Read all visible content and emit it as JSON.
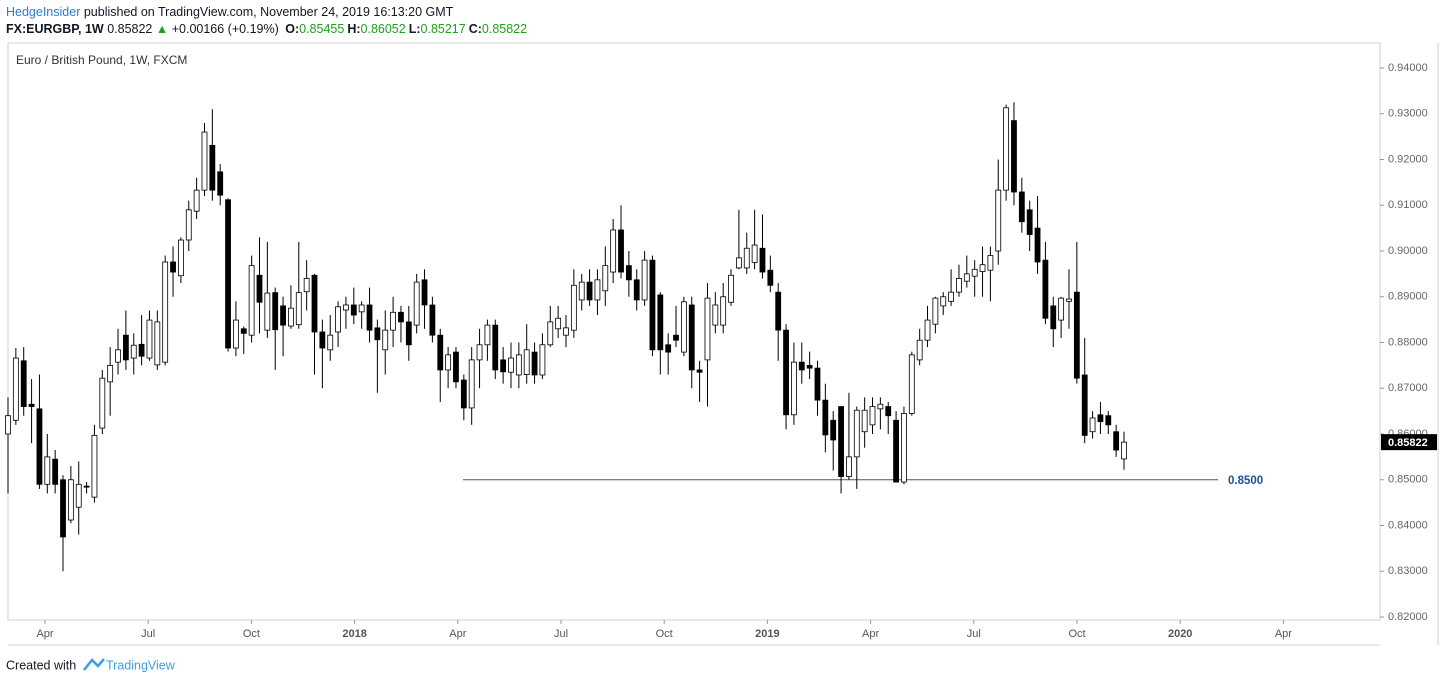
{
  "header": {
    "author": "HedgeInsider",
    "published": "published on TradingView.com, November 24, 2019 16:13:20 GMT",
    "symbol": "FX:EURGBP, 1W",
    "price": "0.85822",
    "change": "+0.00166 (+0.19%)",
    "fields": [
      {
        "label": "O:",
        "value": "0.85455"
      },
      {
        "label": "H:",
        "value": "0.86052"
      },
      {
        "label": "L:",
        "value": "0.85217"
      },
      {
        "label": "C:",
        "value": "0.85822"
      }
    ]
  },
  "chart_data": {
    "type": "candlestick",
    "title": "Euro / British Pound, 1W, FXCM",
    "up_color": "#ffffff",
    "down_color": "#000000",
    "ylim": [
      0.82,
      0.94
    ],
    "yticks": [
      {
        "value": 0.82,
        "label": "0.82000"
      },
      {
        "value": 0.83,
        "label": "0.83000"
      },
      {
        "value": 0.84,
        "label": "0.84000"
      },
      {
        "value": 0.85,
        "label": "0.85000"
      },
      {
        "value": 0.86,
        "label": "0.86000"
      },
      {
        "value": 0.87,
        "label": "0.87000"
      },
      {
        "value": 0.88,
        "label": "0.88000"
      },
      {
        "value": 0.89,
        "label": "0.89000"
      },
      {
        "value": 0.9,
        "label": "0.90000"
      },
      {
        "value": 0.91,
        "label": "0.91000"
      },
      {
        "value": 0.92,
        "label": "0.92000"
      },
      {
        "value": 0.93,
        "label": "0.93000"
      },
      {
        "value": 0.94,
        "label": "0.94000"
      }
    ],
    "categories": [
      "Apr",
      "Jul",
      "Oct",
      "2018",
      "Apr",
      "Jul",
      "Oct",
      "2019",
      "Apr",
      "Jul",
      "Oct",
      "2020",
      "Apr"
    ],
    "hline": {
      "value": 0.85,
      "label": "0.8500",
      "color": "#1c4f9c"
    },
    "last_price": {
      "value": 0.85822,
      "label": "0.85822"
    },
    "ohlc": [
      [
        0.86,
        0.868,
        0.847,
        0.864
      ],
      [
        0.863,
        0.8788,
        0.862,
        0.8766
      ],
      [
        0.876,
        0.879,
        0.864,
        0.866
      ],
      [
        0.8665,
        0.872,
        0.858,
        0.866
      ],
      [
        0.8655,
        0.873,
        0.848,
        0.849
      ],
      [
        0.849,
        0.86,
        0.847,
        0.855
      ],
      [
        0.8545,
        0.8565,
        0.847,
        0.849
      ],
      [
        0.85,
        0.851,
        0.83,
        0.8375
      ],
      [
        0.8412,
        0.853,
        0.8405,
        0.85
      ],
      [
        0.844,
        0.854,
        0.838,
        0.849
      ],
      [
        0.8486,
        0.8495,
        0.847,
        0.8484
      ],
      [
        0.8462,
        0.862,
        0.845,
        0.8597
      ],
      [
        0.8613,
        0.874,
        0.86,
        0.8722
      ],
      [
        0.8714,
        0.879,
        0.864,
        0.875
      ],
      [
        0.8757,
        0.883,
        0.873,
        0.8784
      ],
      [
        0.8816,
        0.887,
        0.874,
        0.8762
      ],
      [
        0.8766,
        0.882,
        0.873,
        0.8794
      ],
      [
        0.8796,
        0.886,
        0.875,
        0.877
      ],
      [
        0.8766,
        0.887,
        0.876,
        0.8849
      ],
      [
        0.8751,
        0.887,
        0.874,
        0.8845
      ],
      [
        0.8757,
        0.899,
        0.875,
        0.8976
      ],
      [
        0.8976,
        0.901,
        0.89,
        0.8954
      ],
      [
        0.8946,
        0.903,
        0.893,
        0.9024
      ],
      [
        0.9024,
        0.911,
        0.9,
        0.909
      ],
      [
        0.9087,
        0.916,
        0.907,
        0.9133
      ],
      [
        0.9133,
        0.928,
        0.912,
        0.926
      ],
      [
        0.9231,
        0.931,
        0.911,
        0.9133
      ],
      [
        0.9173,
        0.919,
        0.91,
        0.9122
      ],
      [
        0.9112,
        0.9115,
        0.878,
        0.8788
      ],
      [
        0.8788,
        0.889,
        0.877,
        0.8849
      ],
      [
        0.883,
        0.8835,
        0.8775,
        0.882
      ],
      [
        0.8816,
        0.899,
        0.88,
        0.8968
      ],
      [
        0.8947,
        0.903,
        0.882,
        0.8888
      ],
      [
        0.8827,
        0.902,
        0.881,
        0.8908
      ],
      [
        0.8909,
        0.892,
        0.874,
        0.8828
      ],
      [
        0.888,
        0.89,
        0.877,
        0.8838
      ],
      [
        0.8836,
        0.8925,
        0.883,
        0.8875
      ],
      [
        0.8839,
        0.902,
        0.883,
        0.8909
      ],
      [
        0.8911,
        0.898,
        0.887,
        0.894
      ],
      [
        0.8947,
        0.895,
        0.873,
        0.8823
      ],
      [
        0.8823,
        0.885,
        0.87,
        0.8788
      ],
      [
        0.8784,
        0.886,
        0.876,
        0.8816
      ],
      [
        0.8823,
        0.889,
        0.879,
        0.8878
      ],
      [
        0.8871,
        0.89,
        0.883,
        0.8882
      ],
      [
        0.8882,
        0.892,
        0.884,
        0.886
      ],
      [
        0.8867,
        0.889,
        0.883,
        0.8882
      ],
      [
        0.8882,
        0.892,
        0.88,
        0.8827
      ],
      [
        0.8832,
        0.885,
        0.869,
        0.8806
      ],
      [
        0.8784,
        0.887,
        0.873,
        0.8827
      ],
      [
        0.8827,
        0.89,
        0.879,
        0.8866
      ],
      [
        0.8866,
        0.888,
        0.88,
        0.8845
      ],
      [
        0.8845,
        0.888,
        0.876,
        0.8795
      ],
      [
        0.8838,
        0.895,
        0.882,
        0.8932
      ],
      [
        0.8937,
        0.896,
        0.883,
        0.8882
      ],
      [
        0.8882,
        0.89,
        0.88,
        0.8816
      ],
      [
        0.8816,
        0.883,
        0.867,
        0.874
      ],
      [
        0.874,
        0.879,
        0.87,
        0.8773
      ],
      [
        0.8779,
        0.879,
        0.87,
        0.8714
      ],
      [
        0.8718,
        0.873,
        0.863,
        0.8657
      ],
      [
        0.8657,
        0.879,
        0.862,
        0.8762
      ],
      [
        0.8762,
        0.883,
        0.87,
        0.8795
      ],
      [
        0.8795,
        0.885,
        0.876,
        0.8838
      ],
      [
        0.8838,
        0.885,
        0.872,
        0.874
      ],
      [
        0.8762,
        0.879,
        0.871,
        0.8736
      ],
      [
        0.8735,
        0.88,
        0.87,
        0.8766
      ],
      [
        0.8729,
        0.88,
        0.87,
        0.8773
      ],
      [
        0.873,
        0.884,
        0.871,
        0.8784
      ],
      [
        0.8779,
        0.88,
        0.871,
        0.8729
      ],
      [
        0.8729,
        0.882,
        0.872,
        0.8795
      ],
      [
        0.8795,
        0.888,
        0.879,
        0.8845
      ],
      [
        0.883,
        0.888,
        0.881,
        0.8853
      ],
      [
        0.8816,
        0.886,
        0.879,
        0.8832
      ],
      [
        0.8827,
        0.896,
        0.881,
        0.8925
      ],
      [
        0.8893,
        0.895,
        0.887,
        0.8932
      ],
      [
        0.8932,
        0.896,
        0.888,
        0.8893
      ],
      [
        0.8893,
        0.896,
        0.886,
        0.8937
      ],
      [
        0.8913,
        0.901,
        0.888,
        0.8968
      ],
      [
        0.8954,
        0.907,
        0.893,
        0.9046
      ],
      [
        0.9046,
        0.91,
        0.894,
        0.8954
      ],
      [
        0.8968,
        0.9,
        0.89,
        0.8937
      ],
      [
        0.8937,
        0.896,
        0.887,
        0.8893
      ],
      [
        0.8893,
        0.9,
        0.888,
        0.898
      ],
      [
        0.898,
        0.899,
        0.877,
        0.8784
      ],
      [
        0.8904,
        0.891,
        0.873,
        0.8784
      ],
      [
        0.8795,
        0.882,
        0.873,
        0.8779
      ],
      [
        0.8816,
        0.888,
        0.879,
        0.8805
      ],
      [
        0.8779,
        0.89,
        0.877,
        0.8889
      ],
      [
        0.8882,
        0.89,
        0.87,
        0.874
      ],
      [
        0.874,
        0.876,
        0.867,
        0.8735
      ],
      [
        0.8762,
        0.893,
        0.866,
        0.8897
      ],
      [
        0.8838,
        0.891,
        0.882,
        0.8882
      ],
      [
        0.8838,
        0.893,
        0.882,
        0.89
      ],
      [
        0.8888,
        0.896,
        0.888,
        0.8947
      ],
      [
        0.8963,
        0.909,
        0.896,
        0.8985
      ],
      [
        0.8963,
        0.904,
        0.895,
        0.9006
      ],
      [
        0.8975,
        0.909,
        0.896,
        0.9013
      ],
      [
        0.9006,
        0.908,
        0.894,
        0.8954
      ],
      [
        0.8958,
        0.899,
        0.891,
        0.8925
      ],
      [
        0.891,
        0.893,
        0.876,
        0.8827
      ],
      [
        0.8827,
        0.884,
        0.861,
        0.8642
      ],
      [
        0.8642,
        0.88,
        0.862,
        0.8757
      ],
      [
        0.8757,
        0.88,
        0.871,
        0.874
      ],
      [
        0.875,
        0.878,
        0.872,
        0.8744
      ],
      [
        0.8744,
        0.876,
        0.864,
        0.8674
      ],
      [
        0.8674,
        0.871,
        0.856,
        0.8598
      ],
      [
        0.863,
        0.865,
        0.852,
        0.8587
      ],
      [
        0.866,
        0.866,
        0.847,
        0.8507
      ],
      [
        0.8507,
        0.869,
        0.85,
        0.855
      ],
      [
        0.855,
        0.866,
        0.848,
        0.8652
      ],
      [
        0.8605,
        0.868,
        0.857,
        0.8652
      ],
      [
        0.862,
        0.868,
        0.86,
        0.866
      ],
      [
        0.8655,
        0.868,
        0.861,
        0.8665
      ],
      [
        0.866,
        0.867,
        0.86,
        0.864
      ],
      [
        0.863,
        0.865,
        0.8495,
        0.8495
      ],
      [
        0.8495,
        0.866,
        0.849,
        0.8645
      ],
      [
        0.8645,
        0.878,
        0.864,
        0.8773
      ],
      [
        0.8762,
        0.883,
        0.875,
        0.8805
      ],
      [
        0.8805,
        0.888,
        0.879,
        0.8849
      ],
      [
        0.884,
        0.89,
        0.882,
        0.8897
      ],
      [
        0.888,
        0.891,
        0.886,
        0.89
      ],
      [
        0.889,
        0.896,
        0.888,
        0.891
      ],
      [
        0.891,
        0.897,
        0.89,
        0.894
      ],
      [
        0.8934,
        0.899,
        0.892,
        0.895
      ],
      [
        0.8945,
        0.898,
        0.89,
        0.896
      ],
      [
        0.8955,
        0.901,
        0.89,
        0.897
      ],
      [
        0.8958,
        0.901,
        0.889,
        0.899
      ],
      [
        0.9,
        0.92,
        0.897,
        0.9133
      ],
      [
        0.9133,
        0.932,
        0.911,
        0.9313
      ],
      [
        0.9285,
        0.9325,
        0.91,
        0.9129
      ],
      [
        0.9129,
        0.916,
        0.904,
        0.9064
      ],
      [
        0.909,
        0.911,
        0.9,
        0.9036
      ],
      [
        0.905,
        0.912,
        0.895,
        0.8976
      ],
      [
        0.898,
        0.902,
        0.884,
        0.8853
      ],
      [
        0.888,
        0.89,
        0.879,
        0.883
      ],
      [
        0.8849,
        0.89,
        0.881,
        0.8897
      ],
      [
        0.889,
        0.896,
        0.883,
        0.8895
      ],
      [
        0.891,
        0.902,
        0.871,
        0.8722
      ],
      [
        0.8729,
        0.881,
        0.858,
        0.8597
      ],
      [
        0.8605,
        0.865,
        0.859,
        0.8635
      ],
      [
        0.8642,
        0.867,
        0.86,
        0.8627
      ],
      [
        0.864,
        0.865,
        0.86,
        0.862
      ],
      [
        0.8605,
        0.862,
        0.855,
        0.8565
      ],
      [
        0.85455,
        0.86052,
        0.85217,
        0.85822
      ]
    ]
  },
  "footer": {
    "created": "Created with",
    "brand": "TradingView"
  }
}
